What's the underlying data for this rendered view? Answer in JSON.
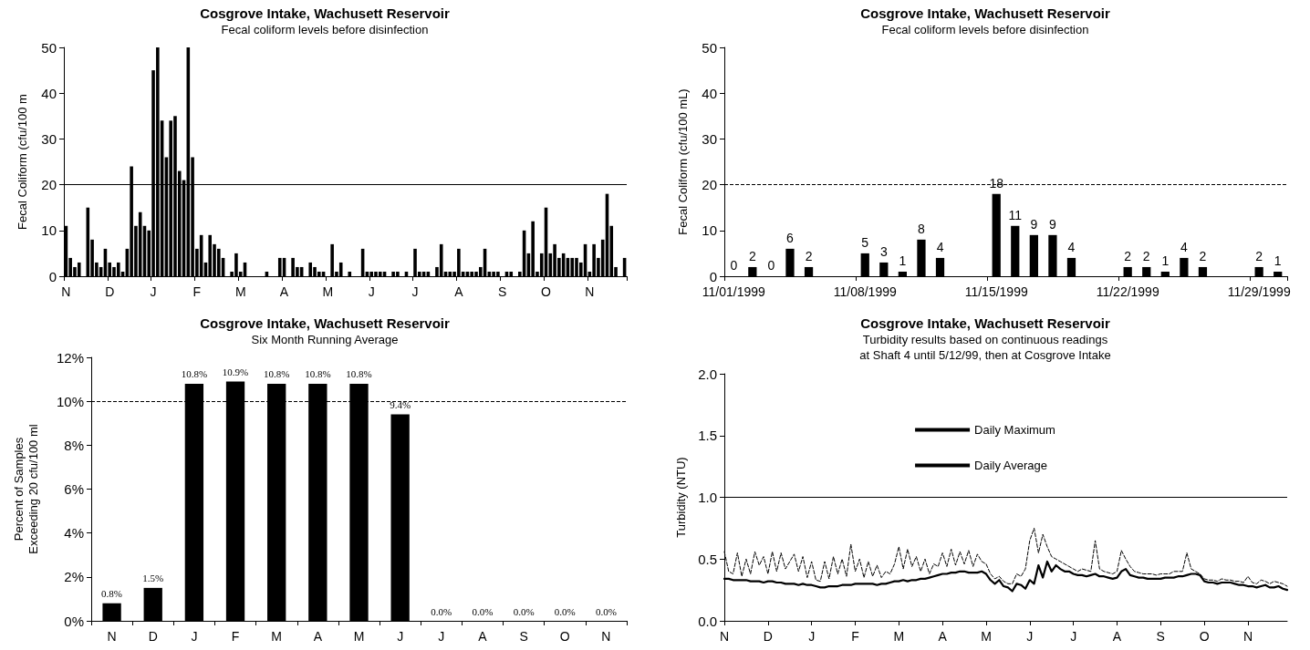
{
  "chart_data": [
    {
      "type": "bar",
      "title": "Cosgrove Intake, Wachusett Reservoir",
      "subtitle": "Fecal coliform levels before disinfection",
      "ylabel": "Fecal Coliform (cfu/100 m",
      "categories": [
        "N",
        null,
        null,
        null,
        null,
        null,
        null,
        null,
        null,
        null,
        "D",
        null,
        null,
        null,
        null,
        null,
        null,
        null,
        null,
        null,
        "J",
        null,
        null,
        null,
        null,
        null,
        null,
        null,
        null,
        null,
        "F",
        null,
        null,
        null,
        null,
        null,
        null,
        null,
        null,
        null,
        "M",
        null,
        null,
        null,
        null,
        null,
        null,
        null,
        null,
        null,
        "A",
        null,
        null,
        null,
        null,
        null,
        null,
        null,
        null,
        null,
        "M",
        null,
        null,
        null,
        null,
        null,
        null,
        null,
        null,
        null,
        "J",
        null,
        null,
        null,
        null,
        null,
        null,
        null,
        null,
        null,
        "J",
        null,
        null,
        null,
        null,
        null,
        null,
        null,
        null,
        null,
        "A",
        null,
        null,
        null,
        null,
        null,
        null,
        null,
        null,
        null,
        "S",
        null,
        null,
        null,
        null,
        null,
        null,
        null,
        null,
        null,
        "O",
        null,
        null,
        null,
        null,
        null,
        null,
        null,
        null,
        null,
        "N",
        null,
        null,
        null,
        null,
        null,
        null,
        null,
        null
      ],
      "values": [
        11,
        4,
        2,
        3,
        0,
        15,
        8,
        3,
        2,
        6,
        3,
        2,
        3,
        1,
        6,
        24,
        11,
        14,
        11,
        10,
        45,
        50,
        34,
        26,
        34,
        35,
        23,
        21,
        50,
        26,
        6,
        9,
        3,
        9,
        7,
        6,
        4,
        0,
        1,
        5,
        1,
        3,
        0,
        0,
        0,
        0,
        1,
        0,
        0,
        4,
        4,
        0,
        4,
        2,
        2,
        0,
        3,
        2,
        1,
        1,
        0,
        7,
        1,
        3,
        0,
        1,
        0,
        0,
        6,
        1,
        1,
        1,
        1,
        1,
        0,
        1,
        1,
        0,
        1,
        0,
        6,
        1,
        1,
        1,
        0,
        2,
        7,
        1,
        1,
        1,
        6,
        1,
        1,
        1,
        1,
        2,
        6,
        1,
        1,
        1,
        0,
        1,
        1,
        0,
        1,
        10,
        5,
        12,
        1,
        5,
        15,
        5,
        7,
        4,
        5,
        4,
        4,
        4,
        3,
        7,
        1,
        7,
        4,
        8,
        18,
        11,
        2,
        0,
        4
      ],
      "color": "#000000",
      "ylim": [
        0,
        50
      ],
      "yticks": [
        0,
        10,
        20,
        30,
        40,
        50
      ],
      "grid": false,
      "ref_lines": [
        {
          "axis": "y",
          "value": 20,
          "color": "#000000",
          "line_style": "solid"
        }
      ]
    },
    {
      "type": "bar",
      "title": "Cosgrove Intake, Wachusett Reservoir",
      "subtitle": "Fecal coliform levels before disinfection",
      "ylabel": "Fecal Coliform (cfu/100 mL)",
      "categories": [
        "11/01/1999",
        null,
        null,
        null,
        null,
        null,
        null,
        "11/08/1999",
        null,
        null,
        null,
        null,
        null,
        null,
        "11/15/1999",
        null,
        null,
        null,
        null,
        null,
        null,
        "11/22/1999",
        null,
        null,
        null,
        null,
        null,
        null,
        "11/29/1999",
        null
      ],
      "values": [
        0,
        2,
        0,
        6,
        2,
        null,
        null,
        5,
        3,
        1,
        8,
        4,
        null,
        null,
        18,
        11,
        9,
        9,
        4,
        null,
        null,
        2,
        2,
        1,
        4,
        2,
        null,
        null,
        2,
        1
      ],
      "color": "#000000",
      "ylim": [
        0,
        50
      ],
      "yticks": [
        0,
        10,
        20,
        30,
        40,
        50
      ],
      "grid": false,
      "data_labels": true,
      "ref_lines": [
        {
          "axis": "y",
          "value": 20,
          "color": "#000000",
          "line_style": "dashed"
        }
      ]
    },
    {
      "type": "bar",
      "title": "Cosgrove Intake, Wachusett Reservoir",
      "subtitle": "Six Month Running Average",
      "ylabel": "Percent of Samples\nExceeding 20 cfu/100 ml",
      "categories": [
        "N",
        "D",
        "J",
        "F",
        "M",
        "A",
        "M",
        "J",
        "J",
        "A",
        "S",
        "O",
        "N"
      ],
      "values": [
        0.8,
        1.5,
        10.8,
        10.9,
        10.8,
        10.8,
        10.8,
        9.4,
        0,
        0,
        0,
        0,
        0
      ],
      "value_labels": [
        "0.8%",
        "1.5%",
        "10.8%",
        "10.9%",
        "10.8%",
        "10.8%",
        "10.8%",
        "9.4%",
        "0.0%",
        "0.0%",
        "0.0%",
        "0.0%",
        "0.0%"
      ],
      "color": "#000000",
      "ylim": [
        0,
        12
      ],
      "yticks": [
        {
          "value": 0,
          "label": "0%"
        },
        {
          "value": 2,
          "label": "2%"
        },
        {
          "value": 4,
          "label": "4%"
        },
        {
          "value": 6,
          "label": "6%"
        },
        {
          "value": 8,
          "label": "8%"
        },
        {
          "value": 10,
          "label": "10%"
        },
        {
          "value": 12,
          "label": "12%"
        }
      ],
      "grid": false,
      "ref_lines": [
        {
          "axis": "y",
          "value": 10,
          "color": "#000000",
          "line_style": "dashed"
        }
      ]
    },
    {
      "type": "line",
      "title": "Cosgrove Intake, Wachusett Reservoir",
      "subtitle": "Turbidity results based on continuous readings\nat Shaft 4 until 5/12/99, then at Cosgrove Intake",
      "ylabel": "Turbidity (NTU)",
      "categories": [
        "N",
        null,
        null,
        null,
        null,
        null,
        null,
        null,
        null,
        null,
        "D",
        null,
        null,
        null,
        null,
        null,
        null,
        null,
        null,
        null,
        "J",
        null,
        null,
        null,
        null,
        null,
        null,
        null,
        null,
        null,
        "F",
        null,
        null,
        null,
        null,
        null,
        null,
        null,
        null,
        null,
        "M",
        null,
        null,
        null,
        null,
        null,
        null,
        null,
        null,
        null,
        "A",
        null,
        null,
        null,
        null,
        null,
        null,
        null,
        null,
        null,
        "M",
        null,
        null,
        null,
        null,
        null,
        null,
        null,
        null,
        null,
        "J",
        null,
        null,
        null,
        null,
        null,
        null,
        null,
        null,
        null,
        "J",
        null,
        null,
        null,
        null,
        null,
        null,
        null,
        null,
        null,
        "A",
        null,
        null,
        null,
        null,
        null,
        null,
        null,
        null,
        null,
        "S",
        null,
        null,
        null,
        null,
        null,
        null,
        null,
        null,
        null,
        "O",
        null,
        null,
        null,
        null,
        null,
        null,
        null,
        null,
        null,
        "N",
        null,
        null,
        null,
        null,
        null,
        null,
        null,
        null,
        null
      ],
      "series": [
        {
          "name": "Daily Maximum",
          "color": "#000000",
          "line_style": "dashed",
          "values": [
            0.56,
            0.4,
            0.38,
            0.55,
            0.36,
            0.5,
            0.38,
            0.56,
            0.45,
            0.52,
            0.38,
            0.56,
            0.4,
            0.55,
            0.42,
            0.48,
            0.54,
            0.4,
            0.52,
            0.35,
            0.48,
            0.33,
            0.32,
            0.48,
            0.34,
            0.52,
            0.38,
            0.5,
            0.36,
            0.62,
            0.4,
            0.5,
            0.35,
            0.48,
            0.36,
            0.45,
            0.35,
            0.4,
            0.38,
            0.46,
            0.6,
            0.42,
            0.58,
            0.44,
            0.52,
            0.4,
            0.5,
            0.38,
            0.46,
            0.44,
            0.55,
            0.44,
            0.58,
            0.45,
            0.56,
            0.46,
            0.57,
            0.44,
            0.54,
            0.48,
            0.46,
            0.38,
            0.34,
            0.36,
            0.32,
            0.3,
            0.3,
            0.38,
            0.36,
            0.42,
            0.65,
            0.75,
            0.55,
            0.7,
            0.6,
            0.52,
            0.5,
            0.48,
            0.46,
            0.44,
            0.42,
            0.4,
            0.42,
            0.41,
            0.4,
            0.65,
            0.42,
            0.4,
            0.39,
            0.38,
            0.4,
            0.57,
            0.5,
            0.44,
            0.4,
            0.39,
            0.38,
            0.38,
            0.38,
            0.37,
            0.38,
            0.38,
            0.38,
            0.4,
            0.4,
            0.4,
            0.55,
            0.42,
            0.4,
            0.38,
            0.34,
            0.33,
            0.33,
            0.32,
            0.34,
            0.33,
            0.33,
            0.32,
            0.32,
            0.31,
            0.36,
            0.31,
            0.3,
            0.33,
            0.32,
            0.3,
            0.32,
            0.31,
            0.3,
            0.28
          ]
        },
        {
          "name": "Daily Average",
          "color": "#000000",
          "line_style": "solid",
          "values": [
            0.34,
            0.34,
            0.33,
            0.33,
            0.33,
            0.33,
            0.32,
            0.32,
            0.32,
            0.31,
            0.32,
            0.32,
            0.31,
            0.31,
            0.3,
            0.3,
            0.3,
            0.29,
            0.3,
            0.29,
            0.29,
            0.28,
            0.27,
            0.27,
            0.28,
            0.28,
            0.28,
            0.29,
            0.29,
            0.29,
            0.3,
            0.3,
            0.3,
            0.3,
            0.3,
            0.29,
            0.3,
            0.3,
            0.31,
            0.32,
            0.32,
            0.33,
            0.32,
            0.33,
            0.33,
            0.34,
            0.34,
            0.35,
            0.36,
            0.37,
            0.38,
            0.38,
            0.39,
            0.39,
            0.4,
            0.4,
            0.39,
            0.39,
            0.39,
            0.4,
            0.38,
            0.33,
            0.3,
            0.33,
            0.28,
            0.27,
            0.24,
            0.3,
            0.29,
            0.26,
            0.33,
            0.3,
            0.45,
            0.35,
            0.48,
            0.4,
            0.45,
            0.42,
            0.4,
            0.4,
            0.38,
            0.37,
            0.37,
            0.36,
            0.37,
            0.38,
            0.36,
            0.36,
            0.35,
            0.34,
            0.35,
            0.4,
            0.42,
            0.37,
            0.36,
            0.35,
            0.35,
            0.34,
            0.34,
            0.34,
            0.34,
            0.35,
            0.35,
            0.35,
            0.36,
            0.36,
            0.37,
            0.38,
            0.38,
            0.37,
            0.32,
            0.31,
            0.31,
            0.3,
            0.31,
            0.31,
            0.31,
            0.3,
            0.29,
            0.29,
            0.28,
            0.28,
            0.27,
            0.28,
            0.29,
            0.27,
            0.27,
            0.28,
            0.26,
            0.25
          ]
        }
      ],
      "ylim": [
        0,
        2
      ],
      "yticks": [
        {
          "value": 0,
          "label": "0.0"
        },
        {
          "value": 0.5,
          "label": "0.5"
        },
        {
          "value": 1,
          "label": "1.0"
        },
        {
          "value": 1.5,
          "label": "1.5"
        },
        {
          "value": 2,
          "label": "2.0"
        }
      ],
      "grid": false,
      "marker": "none",
      "legend": "top",
      "ref_lines": [
        {
          "axis": "y",
          "value": 1,
          "color": "#000000",
          "line_style": "solid"
        }
      ]
    }
  ]
}
